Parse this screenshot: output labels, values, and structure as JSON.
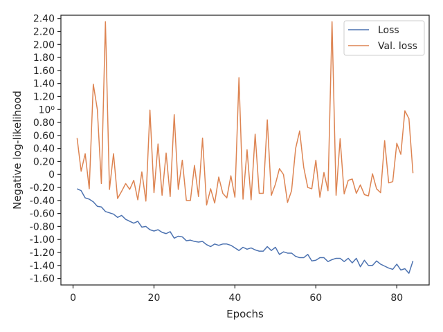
{
  "chart_data": {
    "type": "line",
    "title": "",
    "xlabel": "Epochs",
    "ylabel": "Negative log-likelihood",
    "xlim": [
      -3,
      88
    ],
    "ylim": [
      -1.7,
      2.45
    ],
    "grid": false,
    "legend_position": "top-right",
    "x_ticks": [
      0,
      20,
      40,
      60,
      80
    ],
    "x_tick_labels": [
      "0",
      "20",
      "40",
      "60",
      "80"
    ],
    "y_ticks": [
      -1.6,
      -1.4,
      -1.2,
      -1.0,
      -0.8,
      -0.6,
      -0.4,
      -0.2,
      0,
      0.2,
      0.4,
      0.6,
      0.8,
      1.0,
      1.2,
      1.4,
      1.6,
      1.8,
      2.0,
      2.2,
      2.4
    ],
    "y_tick_labels": [
      "-1.60",
      "-1.40",
      "-1.20",
      "-1.00",
      "-0.80",
      "-0.60",
      "-0.40",
      "-0.20",
      "0",
      "0.20",
      "0.40",
      "0.60",
      "0.80",
      "10⁰",
      "1.20",
      "1.40",
      "1.60",
      "1.80",
      "2.00",
      "2.20",
      "2.40"
    ],
    "series": [
      {
        "name": "Loss",
        "color": "#4c72b0",
        "values": [
          -0.22,
          -0.25,
          -0.36,
          -0.38,
          -0.42,
          -0.49,
          -0.5,
          -0.57,
          -0.59,
          -0.61,
          -0.66,
          -0.63,
          -0.69,
          -0.72,
          -0.75,
          -0.72,
          -0.81,
          -0.8,
          -0.85,
          -0.87,
          -0.85,
          -0.89,
          -0.91,
          -0.88,
          -0.98,
          -0.95,
          -0.96,
          -1.02,
          -1.01,
          -1.03,
          -1.04,
          -1.03,
          -1.08,
          -1.11,
          -1.07,
          -1.09,
          -1.07,
          -1.07,
          -1.09,
          -1.13,
          -1.17,
          -1.12,
          -1.15,
          -1.13,
          -1.16,
          -1.18,
          -1.18,
          -1.11,
          -1.17,
          -1.12,
          -1.23,
          -1.19,
          -1.21,
          -1.21,
          -1.26,
          -1.28,
          -1.28,
          -1.23,
          -1.33,
          -1.32,
          -1.28,
          -1.28,
          -1.34,
          -1.31,
          -1.29,
          -1.29,
          -1.34,
          -1.29,
          -1.36,
          -1.29,
          -1.42,
          -1.32,
          -1.4,
          -1.4,
          -1.33,
          -1.38,
          -1.41,
          -1.44,
          -1.46,
          -1.38,
          -1.47,
          -1.45,
          -1.52,
          -1.33
        ]
      },
      {
        "name": "Val. loss",
        "color": "#dd8452",
        "values": [
          0.56,
          0.05,
          0.32,
          -0.22,
          1.39,
          1.0,
          -0.14,
          2.35,
          -0.23,
          0.32,
          -0.37,
          -0.26,
          -0.14,
          -0.23,
          -0.09,
          -0.39,
          0.04,
          -0.41,
          0.99,
          -0.28,
          0.47,
          -0.32,
          0.33,
          -0.34,
          0.92,
          -0.23,
          0.22,
          -0.4,
          -0.4,
          0.14,
          -0.34,
          0.56,
          -0.47,
          -0.22,
          -0.44,
          -0.04,
          -0.29,
          -0.36,
          -0.02,
          -0.35,
          1.49,
          -0.38,
          0.38,
          -0.39,
          0.62,
          -0.29,
          -0.29,
          0.84,
          -0.32,
          -0.15,
          0.09,
          0.0,
          -0.43,
          -0.25,
          0.4,
          0.67,
          0.11,
          -0.2,
          -0.22,
          0.22,
          -0.35,
          0.03,
          -0.25,
          2.35,
          -0.32,
          0.55,
          -0.3,
          -0.09,
          -0.07,
          -0.29,
          -0.16,
          -0.31,
          -0.33,
          0.01,
          -0.22,
          -0.28,
          0.52,
          -0.13,
          -0.11,
          0.48,
          0.31,
          0.98,
          0.86,
          0.02
        ]
      }
    ]
  }
}
